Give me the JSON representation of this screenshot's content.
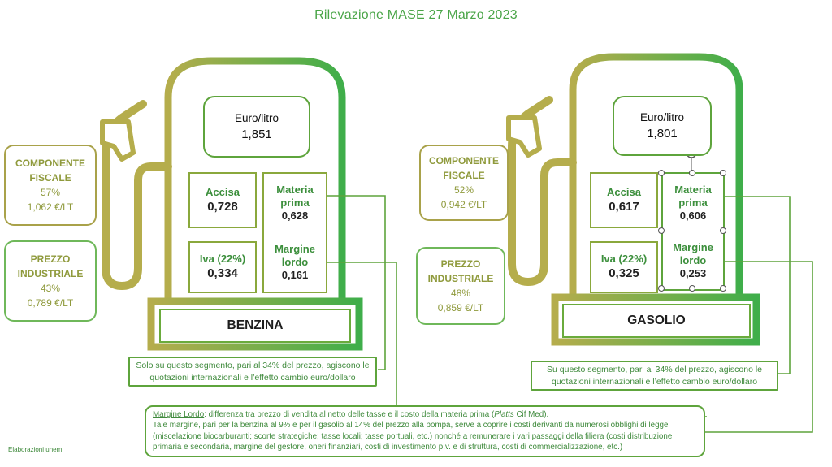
{
  "title": "Rilevazione MASE 27 Marzo 2023",
  "credit": "Elaborazioni unem",
  "colors": {
    "green": "#4aa548",
    "olive": "#a9a24a",
    "text_green": "#3f8a3c"
  },
  "benzina": {
    "name": "BENZINA",
    "price_label": "Euro/litro",
    "price_value": "1,851",
    "accisa_label": "Accisa",
    "accisa_value": "0,728",
    "iva_label": "Iva (22%)",
    "iva_value": "0,334",
    "materia_label_1": "Materia",
    "materia_label_2": "prima",
    "materia_value": "0,628",
    "margine_label_1": "Margine",
    "margine_label_2": "lordo",
    "margine_value": "0,161",
    "fiscale_title_1": "COMPONENTE",
    "fiscale_title_2": "FISCALE",
    "fiscale_pct": "57%",
    "fiscale_value": "1,062 €/LT",
    "industriale_title_1": "PREZZO",
    "industriale_title_2": "INDUSTRIALE",
    "industriale_pct": "43%",
    "industriale_value": "0,789 €/LT",
    "segment_note_1": "Solo su questo segmento, pari al 34% del prezzo, agiscono le",
    "segment_note_2": "quotazioni internazionali e l’effetto cambio euro/dollaro"
  },
  "gasolio": {
    "name": "GASOLIO",
    "price_label": "Euro/litro",
    "price_value": "1,801",
    "accisa_label": "Accisa",
    "accisa_value": "0,617",
    "iva_label": "Iva (22%)",
    "iva_value": "0,325",
    "materia_label_1": "Materia",
    "materia_label_2": "prima",
    "materia_value": "0,606",
    "margine_label_1": "Margine",
    "margine_label_2": "lordo",
    "margine_value": "0,253",
    "fiscale_title_1": "COMPONENTE",
    "fiscale_title_2": "FISCALE",
    "fiscale_pct": "52%",
    "fiscale_value": "0,942 €/LT",
    "industriale_title_1": "PREZZO",
    "industriale_title_2": "INDUSTRIALE",
    "industriale_pct": "48%",
    "industriale_value": "0,859 €/LT",
    "segment_note_1": "Su questo segmento, pari al 34% del prezzo, agiscono le",
    "segment_note_2": "quotazioni internazionali e l’effetto cambio euro/dollaro"
  },
  "margin_note": {
    "label": "Margine Lordo",
    "line1_a": ": differenza tra prezzo di vendita al netto delle tasse e il costo della materia prima (",
    "line1_italic": "Platts",
    "line1_b": " Cif Med).",
    "line2": "Tale margine, pari per la benzina al 9% e per il gasolio al 14% del prezzo alla pompa, serve a coprire i costi derivanti da numerosi obblighi di legge",
    "line3": "(miscelazione biocarburanti; scorte strategiche; tasse locali; tasse portuali, etc.) nonché a remunerare i vari passaggi della filiera (costi distribuzione",
    "line4": "primaria e secondaria, margine del gestore, oneri finanziari, costi di investimento p.v. e di struttura, costi di commercializzazione, etc.)"
  }
}
